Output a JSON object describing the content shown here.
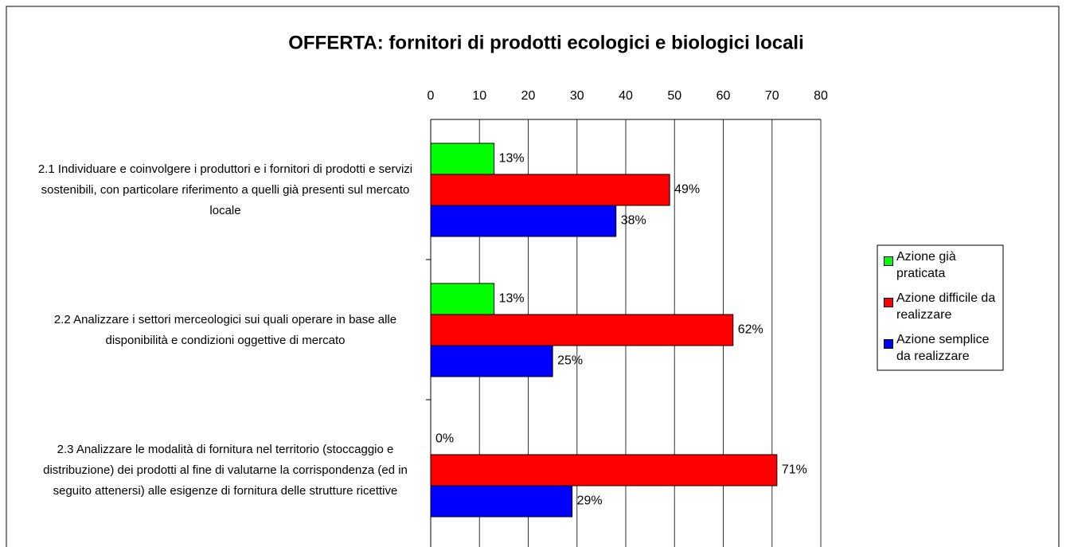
{
  "chart_data": {
    "type": "barh",
    "title": "OFFERTA: fornitori di prodotti ecologici e biologici locali",
    "categories": [
      "2.1 Individuare e coinvolgere i produttori e i fornitori di prodotti e servizi sostenibili, con particolare riferimento a quelli già presenti sul mercato locale",
      "2.2 Analizzare i settori merceologici sui quali operare in base alle disponibilità e condizioni oggettive di mercato",
      "2.3 Analizzare le modalità di fornitura nel territorio (stoccaggio e distribuzione) dei prodotti al fine di valutarne la corrispondenza (ed in seguito attenersi) alle esigenze di fornitura delle strutture ricettive"
    ],
    "series": [
      {
        "name": "Azione già praticata",
        "color": "#00ff00",
        "values": [
          13,
          13,
          0
        ],
        "value_labels": [
          "13%",
          "13%",
          "0%"
        ]
      },
      {
        "name": "Azione difficile da realizzare",
        "color": "#ff0000",
        "values": [
          49,
          62,
          71
        ],
        "value_labels": [
          "49%",
          "62%",
          "71%"
        ]
      },
      {
        "name": "Azione semplice da realizzare",
        "color": "#0000ff",
        "values": [
          38,
          25,
          29
        ],
        "value_labels": [
          "38%",
          "25%",
          "29%"
        ]
      }
    ],
    "xlim": [
      0,
      80
    ],
    "xticks": [
      0,
      10,
      20,
      30,
      40,
      50,
      60,
      70,
      80
    ],
    "grid": true,
    "legend": "right"
  }
}
